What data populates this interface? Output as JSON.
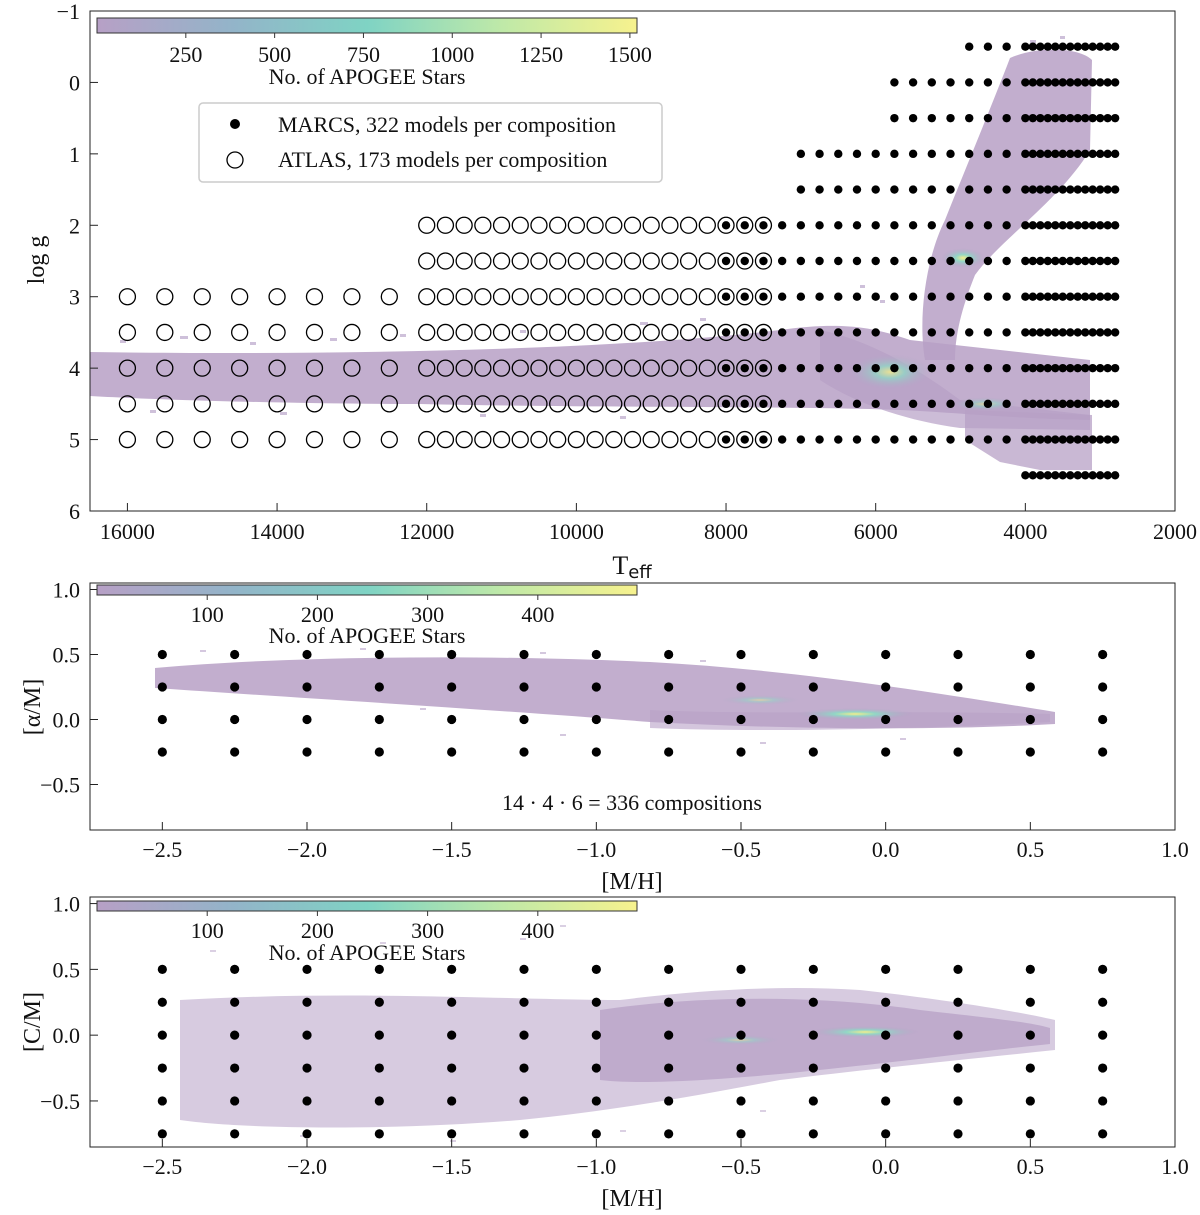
{
  "chart_data": [
    {
      "type": "scatter",
      "id": "hr",
      "xlabel": "T",
      "xlabel_sub": "eff",
      "ylabel": "log g",
      "xlim": [
        16500,
        2000
      ],
      "ylim": [
        -1,
        6
      ],
      "xticks": [
        16000,
        14000,
        12000,
        10000,
        8000,
        6000,
        4000,
        2000
      ],
      "yticks": [
        -1,
        0,
        1,
        2,
        3,
        4,
        5,
        6
      ],
      "colorbar": {
        "label": "No. of APOGEE Stars",
        "ticks": [
          250,
          500,
          750,
          1000,
          1250,
          1500
        ],
        "range": [
          0,
          1520
        ],
        "colors": [
          "#b7a0c6",
          "#93b4c9",
          "#7fd3c4",
          "#bfe9a8",
          "#f7f28e"
        ]
      },
      "legend": [
        {
          "marker": "filled",
          "label": "MARCS, 322 models per composition"
        },
        {
          "marker": "open",
          "label": "ATLAS, 173 models per composition"
        }
      ],
      "grid": false,
      "density_color": "#b7a0c6",
      "density_peak_color": "#f4ee8a"
    },
    {
      "type": "scatter",
      "id": "alpha",
      "xlabel": "[M/H]",
      "ylabel": "[α/M]",
      "xlim": [
        -2.75,
        1.0
      ],
      "ylim": [
        -0.85,
        1.05
      ],
      "xticks": [
        -2.5,
        -2.0,
        -1.5,
        -1.0,
        -0.5,
        0.0,
        0.5,
        1.0
      ],
      "xtick_labels": [
        "−2.5",
        "−2.0",
        "−1.5",
        "−1.0",
        "−0.5",
        "0.0",
        "0.5",
        "1.0"
      ],
      "yticks": [
        -0.5,
        0.0,
        0.5,
        1.0
      ],
      "ytick_labels": [
        "−0.5",
        "0.0",
        "0.5",
        "1.0"
      ],
      "grid_x": [
        -2.5,
        -2.25,
        -2.0,
        -1.75,
        -1.5,
        -1.25,
        -1.0,
        -0.75,
        -0.5,
        -0.25,
        0.0,
        0.25,
        0.5,
        0.75
      ],
      "grid_y": [
        -0.25,
        0.0,
        0.25,
        0.5
      ],
      "annotation": "14 · 4 · 6 = 336 compositions",
      "colorbar": {
        "label": "No. of APOGEE Stars",
        "ticks": [
          100,
          200,
          300,
          400
        ],
        "range": [
          0,
          490
        ],
        "colors": [
          "#b7a0c6",
          "#93b4c9",
          "#7fd3c4",
          "#bfe9a8",
          "#f7f28e"
        ]
      }
    },
    {
      "type": "scatter",
      "id": "carbon",
      "xlabel": "[M/H]",
      "ylabel": "[C/M]",
      "xlim": [
        -2.75,
        1.0
      ],
      "ylim": [
        -0.85,
        1.05
      ],
      "xticks": [
        -2.5,
        -2.0,
        -1.5,
        -1.0,
        -0.5,
        0.0,
        0.5,
        1.0
      ],
      "xtick_labels": [
        "−2.5",
        "−2.0",
        "−1.5",
        "−1.0",
        "−0.5",
        "0.0",
        "0.5",
        "1.0"
      ],
      "yticks": [
        -0.5,
        0.0,
        0.5,
        1.0
      ],
      "ytick_labels": [
        "−0.5",
        "0.0",
        "0.5",
        "1.0"
      ],
      "grid_x": [
        -2.5,
        -2.25,
        -2.0,
        -1.75,
        -1.5,
        -1.25,
        -1.0,
        -0.75,
        -0.5,
        -0.25,
        0.0,
        0.25,
        0.5,
        0.75
      ],
      "grid_y": [
        -0.75,
        -0.5,
        -0.25,
        0.0,
        0.25,
        0.5
      ],
      "colorbar": {
        "label": "No. of APOGEE Stars",
        "ticks": [
          100,
          200,
          300,
          400
        ],
        "range": [
          0,
          490
        ],
        "colors": [
          "#b7a0c6",
          "#93b4c9",
          "#7fd3c4",
          "#bfe9a8",
          "#f7f28e"
        ]
      }
    }
  ],
  "marcs_grid": [
    {
      "logg": -0.5,
      "teff": [
        4750,
        4500,
        4250,
        4000,
        3900,
        3800,
        3700,
        3600,
        3500,
        3400,
        3300,
        3200,
        3100,
        3000,
        2900,
        2800
      ]
    },
    {
      "logg": 0.0,
      "teff": [
        5750,
        5500,
        5250,
        5000,
        4750,
        4500,
        4250,
        4000,
        3900,
        3800,
        3700,
        3600,
        3500,
        3400,
        3300,
        3200,
        3100,
        3000,
        2900,
        2800
      ]
    },
    {
      "logg": 0.5,
      "teff": [
        5750,
        5500,
        5250,
        5000,
        4750,
        4500,
        4250,
        4000,
        3900,
        3800,
        3700,
        3600,
        3500,
        3400,
        3300,
        3200,
        3100,
        3000,
        2900,
        2800
      ]
    },
    {
      "logg": 1.0,
      "teff": [
        7000,
        6750,
        6500,
        6250,
        6000,
        5750,
        5500,
        5250,
        5000,
        4750,
        4500,
        4250,
        4000,
        3900,
        3800,
        3700,
        3600,
        3500,
        3400,
        3300,
        3200,
        3100,
        3000,
        2900,
        2800
      ]
    },
    {
      "logg": 1.5,
      "teff": [
        7000,
        6750,
        6500,
        6250,
        6000,
        5750,
        5500,
        5250,
        5000,
        4750,
        4500,
        4250,
        4000,
        3900,
        3800,
        3700,
        3600,
        3500,
        3400,
        3300,
        3200,
        3100,
        3000,
        2900,
        2800
      ]
    },
    {
      "logg": 2.0,
      "teff": [
        8000,
        7750,
        7500,
        7250,
        7000,
        6750,
        6500,
        6250,
        6000,
        5750,
        5500,
        5250,
        5000,
        4750,
        4500,
        4250,
        4000,
        3900,
        3800,
        3700,
        3600,
        3500,
        3400,
        3300,
        3200,
        3100,
        3000,
        2900,
        2800
      ]
    },
    {
      "logg": 2.5,
      "teff": [
        8000,
        7750,
        7500,
        7250,
        7000,
        6750,
        6500,
        6250,
        6000,
        5750,
        5500,
        5250,
        5000,
        4750,
        4500,
        4250,
        4000,
        3900,
        3800,
        3700,
        3600,
        3500,
        3400,
        3300,
        3200,
        3100,
        3000,
        2900,
        2800
      ]
    },
    {
      "logg": 3.0,
      "teff": [
        8000,
        7750,
        7500,
        7250,
        7000,
        6750,
        6500,
        6250,
        6000,
        5750,
        5500,
        5250,
        5000,
        4750,
        4500,
        4250,
        4000,
        3900,
        3800,
        3700,
        3600,
        3500,
        3400,
        3300,
        3200,
        3100,
        3000,
        2900,
        2800
      ]
    },
    {
      "logg": 3.5,
      "teff": [
        8000,
        7750,
        7500,
        7250,
        7000,
        6750,
        6500,
        6250,
        6000,
        5750,
        5500,
        5250,
        5000,
        4750,
        4500,
        4250,
        4000,
        3900,
        3800,
        3700,
        3600,
        3500,
        3400,
        3300,
        3200,
        3100,
        3000,
        2900,
        2800
      ]
    },
    {
      "logg": 4.0,
      "teff": [
        8000,
        7750,
        7500,
        7250,
        7000,
        6750,
        6500,
        6250,
        6000,
        5750,
        5500,
        5250,
        5000,
        4750,
        4500,
        4250,
        4000,
        3900,
        3800,
        3700,
        3600,
        3500,
        3400,
        3300,
        3200,
        3100,
        3000,
        2900,
        2800
      ]
    },
    {
      "logg": 4.5,
      "teff": [
        8000,
        7750,
        7500,
        7250,
        7000,
        6750,
        6500,
        6250,
        6000,
        5750,
        5500,
        5250,
        5000,
        4750,
        4500,
        4250,
        4000,
        3900,
        3800,
        3700,
        3600,
        3500,
        3400,
        3300,
        3200,
        3100,
        3000,
        2900,
        2800
      ]
    },
    {
      "logg": 5.0,
      "teff": [
        8000,
        7750,
        7500,
        7250,
        7000,
        6750,
        6500,
        6250,
        6000,
        5750,
        5500,
        5250,
        5000,
        4750,
        4500,
        4250,
        4000,
        3900,
        3800,
        3700,
        3600,
        3500,
        3400,
        3300,
        3200,
        3100,
        3000,
        2900,
        2800
      ]
    },
    {
      "logg": 5.5,
      "teff": [
        4000,
        3900,
        3800,
        3700,
        3600,
        3500,
        3400,
        3300,
        3200,
        3100,
        3000,
        2900,
        2800
      ]
    }
  ],
  "atlas_grid": [
    {
      "logg": 2.0,
      "teff": [
        12000,
        11750,
        11500,
        11250,
        11000,
        10750,
        10500,
        10250,
        10000,
        9750,
        9500,
        9250,
        9000,
        8750,
        8500,
        8250,
        8000,
        7750,
        7500
      ]
    },
    {
      "logg": 2.5,
      "teff": [
        12000,
        11750,
        11500,
        11250,
        11000,
        10750,
        10500,
        10250,
        10000,
        9750,
        9500,
        9250,
        9000,
        8750,
        8500,
        8250,
        8000,
        7750,
        7500
      ]
    },
    {
      "logg": 3.0,
      "teff": [
        16000,
        15500,
        15000,
        14500,
        14000,
        13500,
        13000,
        12500,
        12000,
        11750,
        11500,
        11250,
        11000,
        10750,
        10500,
        10250,
        10000,
        9750,
        9500,
        9250,
        9000,
        8750,
        8500,
        8250,
        8000,
        7750,
        7500
      ]
    },
    {
      "logg": 3.5,
      "teff": [
        16000,
        15500,
        15000,
        14500,
        14000,
        13500,
        13000,
        12500,
        12000,
        11750,
        11500,
        11250,
        11000,
        10750,
        10500,
        10250,
        10000,
        9750,
        9500,
        9250,
        9000,
        8750,
        8500,
        8250,
        8000,
        7750,
        7500
      ]
    },
    {
      "logg": 4.0,
      "teff": [
        16000,
        15500,
        15000,
        14500,
        14000,
        13500,
        13000,
        12500,
        12000,
        11750,
        11500,
        11250,
        11000,
        10750,
        10500,
        10250,
        10000,
        9750,
        9500,
        9250,
        9000,
        8750,
        8500,
        8250,
        8000,
        7750,
        7500
      ]
    },
    {
      "logg": 4.5,
      "teff": [
        16000,
        15500,
        15000,
        14500,
        14000,
        13500,
        13000,
        12500,
        12000,
        11750,
        11500,
        11250,
        11000,
        10750,
        10500,
        10250,
        10000,
        9750,
        9500,
        9250,
        9000,
        8750,
        8500,
        8250,
        8000,
        7750,
        7500
      ]
    },
    {
      "logg": 5.0,
      "teff": [
        16000,
        15500,
        15000,
        14500,
        14000,
        13500,
        13000,
        12500,
        12000,
        11750,
        11500,
        11250,
        11000,
        10750,
        10500,
        10250,
        10000,
        9750,
        9500,
        9250,
        9000,
        8750,
        8500,
        8250,
        8000,
        7750,
        7500
      ]
    }
  ]
}
